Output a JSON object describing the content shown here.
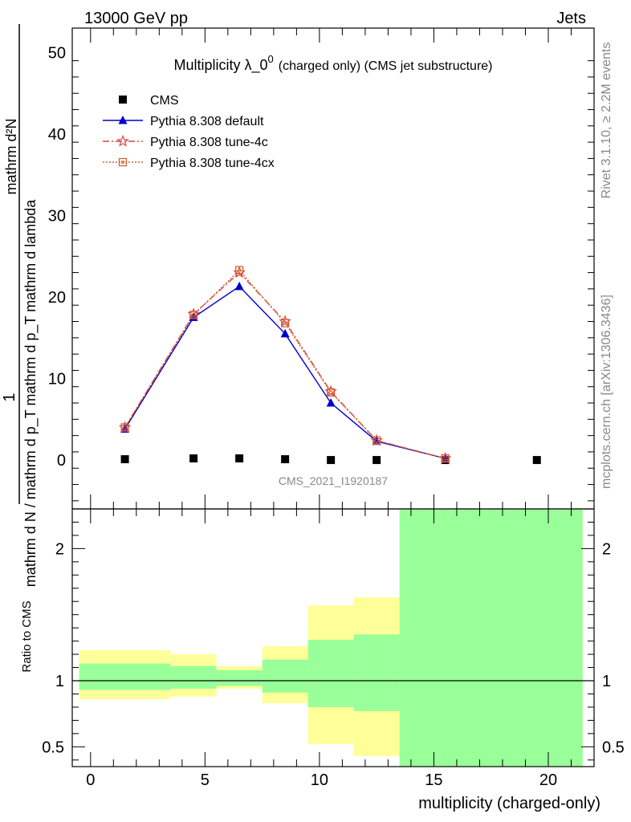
{
  "header": {
    "energy_label": "13000 GeV pp",
    "category_label": "Jets"
  },
  "side_labels": {
    "rivet": "Rivet 3.1.10, ≥ 2.2M events",
    "mcplots": "mcplots.cern.ch [arXiv:1306.3436]"
  },
  "chart_data": [
    {
      "type": "line",
      "title": "Multiplicity λ_0",
      "title_superscript": "0",
      "title_suffix": "(charged only) (CMS jet substructure)",
      "ylabel_numerator": "mathrm d²N",
      "ylabel_prefix": "1",
      "ylabel_denominator": "mathrm d N / mathrm d p_T mathrm d p_T mathrm d lambda",
      "xlabel": "",
      "analysis_tag": "CMS_2021_I1920187",
      "xlim": [
        -0.8,
        22.0
      ],
      "ylim": [
        -6,
        53
      ],
      "yticks": [
        0,
        10,
        20,
        30,
        40,
        50
      ],
      "xticks": [
        0,
        5,
        10,
        15,
        20
      ],
      "legend_position": "top-left",
      "series": [
        {
          "name": "CMS",
          "marker": "filled-square",
          "color": "#000000",
          "x": [
            1.5,
            4.5,
            6.5,
            8.5,
            10.5,
            12.5,
            15.5,
            19.5
          ],
          "y": [
            0.1,
            0.2,
            0.2,
            0.1,
            0.0,
            0.0,
            0.0,
            0.0
          ]
        },
        {
          "name": "Pythia 8.308 default",
          "marker": "filled-triangle",
          "linestyle": "solid",
          "color": "#0000cc",
          "x": [
            1.5,
            4.5,
            6.5,
            8.5,
            10.5,
            12.5,
            15.5
          ],
          "y": [
            3.8,
            17.5,
            21.3,
            15.5,
            7.0,
            2.3,
            0.2
          ]
        },
        {
          "name": "Pythia 8.308 tune-4c",
          "marker": "star",
          "linestyle": "dashdot",
          "color": "#dd4444",
          "x": [
            1.5,
            4.5,
            6.5,
            8.5,
            10.5,
            12.5,
            15.5
          ],
          "y": [
            4.0,
            17.9,
            23.0,
            17.0,
            8.4,
            2.4,
            0.2
          ]
        },
        {
          "name": "Pythia 8.308 tune-4cx",
          "marker": "open-square",
          "linestyle": "dotted",
          "color": "#cc6633",
          "x": [
            1.5,
            4.5,
            6.5,
            8.5,
            10.5,
            12.5,
            15.5
          ],
          "y": [
            4.0,
            17.8,
            23.3,
            16.8,
            8.3,
            2.4,
            0.2
          ]
        }
      ]
    },
    {
      "type": "area",
      "ylabel": "Ratio to CMS",
      "xlabel": "multiplicity (charged-only)",
      "xlim": [
        -0.8,
        22.0
      ],
      "ylim": [
        0.35,
        2.3
      ],
      "yticks": [
        0.5,
        1,
        2
      ],
      "xticks": [
        0,
        5,
        10,
        15,
        20
      ],
      "reference_line": 1,
      "bands": {
        "yellow_color": "#ffff99",
        "green_color": "#99ff99",
        "bins": [
          {
            "xlo": -0.5,
            "xhi": 3.5,
            "yellow": [
              0.86,
              1.23
            ],
            "green": [
              0.93,
              1.13
            ]
          },
          {
            "xlo": 3.5,
            "xhi": 5.5,
            "yellow": [
              0.88,
              1.2
            ],
            "green": [
              0.94,
              1.11
            ]
          },
          {
            "xlo": 5.5,
            "xhi": 7.5,
            "yellow": [
              0.94,
              1.11
            ],
            "green": [
              0.96,
              1.08
            ]
          },
          {
            "xlo": 7.5,
            "xhi": 9.5,
            "yellow": [
              0.83,
              1.26
            ],
            "green": [
              0.91,
              1.16
            ]
          },
          {
            "xlo": 9.5,
            "xhi": 11.5,
            "yellow": [
              0.52,
              1.57
            ],
            "green": [
              0.8,
              1.31
            ]
          },
          {
            "xlo": 11.5,
            "xhi": 13.5,
            "yellow": [
              0.43,
              1.63
            ],
            "green": [
              0.77,
              1.35
            ]
          },
          {
            "xlo": 13.5,
            "xhi": 21.5,
            "yellow": [
              0.35,
              2.3
            ],
            "green": [
              0.35,
              2.3
            ]
          }
        ]
      }
    }
  ]
}
